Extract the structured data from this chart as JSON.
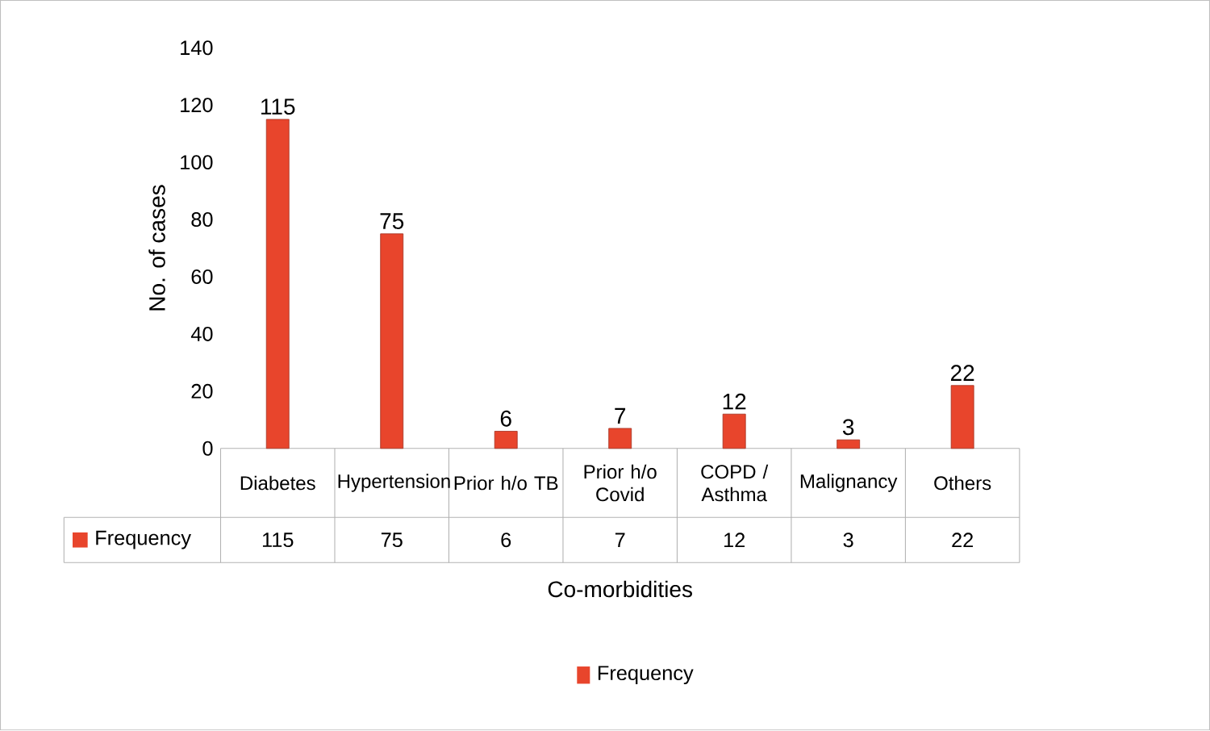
{
  "chart_data": {
    "type": "bar",
    "xlabel": "Co-morbidities",
    "ylabel": "No. of cases",
    "categories": [
      "Diabetes",
      "Hypertension",
      "Prior h/o TB",
      "Prior h/o Covid",
      "COPD / Asthma",
      "Malignancy",
      "Others"
    ],
    "series": [
      {
        "name": "Frequency",
        "color": "#e8452c",
        "values": [
          115,
          75,
          6,
          7,
          12,
          3,
          22
        ],
        "value_labels": [
          "115",
          "75",
          "6",
          "7",
          "12",
          "3",
          "22"
        ]
      }
    ],
    "ylim": [
      0,
      140
    ],
    "yticks": [
      0,
      20,
      40,
      60,
      80,
      100,
      120,
      140
    ],
    "data_labels": true,
    "legend": "bottom"
  }
}
